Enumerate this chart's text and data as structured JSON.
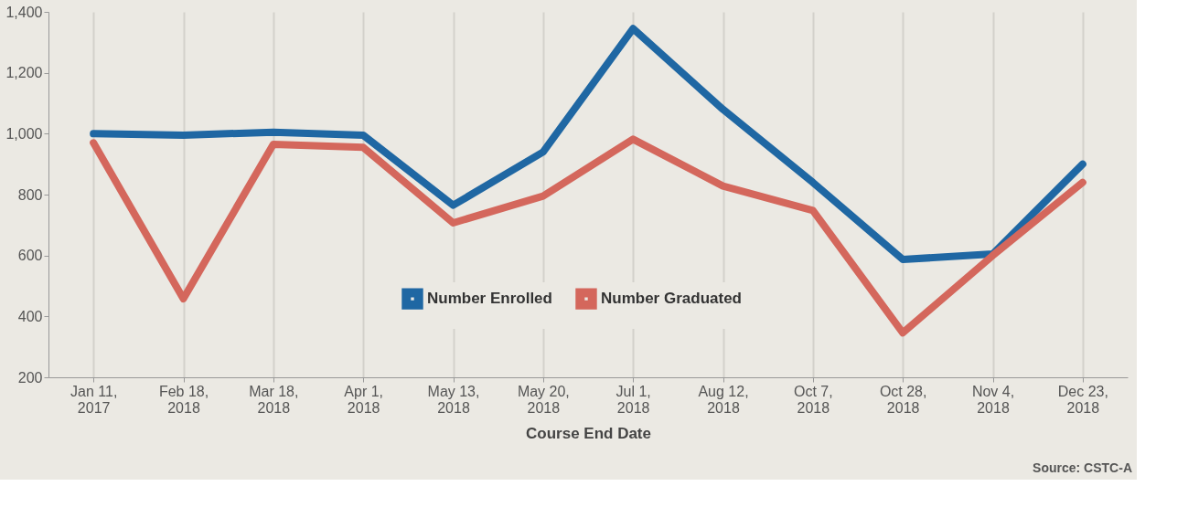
{
  "chart_data": {
    "type": "line",
    "xlabel": "Course End Date",
    "categories": [
      "Jan 11, 2017",
      "Feb 18, 2018",
      "Mar 18, 2018",
      "Apr 1, 2018",
      "May 13, 2018",
      "May 20, 2018",
      "Jul 1, 2018",
      "Aug 12, 2018",
      "Oct 7, 2018",
      "Oct 28, 2018",
      "Nov 4, 2018",
      "Dec 23, 2018"
    ],
    "series": [
      {
        "name": "Number Enrolled",
        "color": "#1f67a3",
        "values": [
          1000,
          995,
          1005,
          995,
          765,
          940,
          1345,
          1080,
          840,
          587,
          605,
          900
        ]
      },
      {
        "name": "Number Graduated",
        "color": "#d4675c",
        "values": [
          970,
          458,
          965,
          955,
          707,
          795,
          982,
          828,
          748,
          346,
          600,
          840
        ]
      }
    ],
    "ylim": [
      200,
      1400
    ],
    "yticks": [
      {
        "value": 200,
        "label": "200"
      },
      {
        "value": 400,
        "label": "400"
      },
      {
        "value": 600,
        "label": "600"
      },
      {
        "value": 800,
        "label": "800"
      },
      {
        "value": 1000,
        "label": "1,000"
      },
      {
        "value": 1200,
        "label": "1,200"
      },
      {
        "value": 1400,
        "label": "1,400"
      }
    ],
    "grid": "x",
    "legend": "center",
    "marker": "none",
    "line_style": "solid",
    "annotations": [
      "Source: CSTC-A"
    ]
  }
}
